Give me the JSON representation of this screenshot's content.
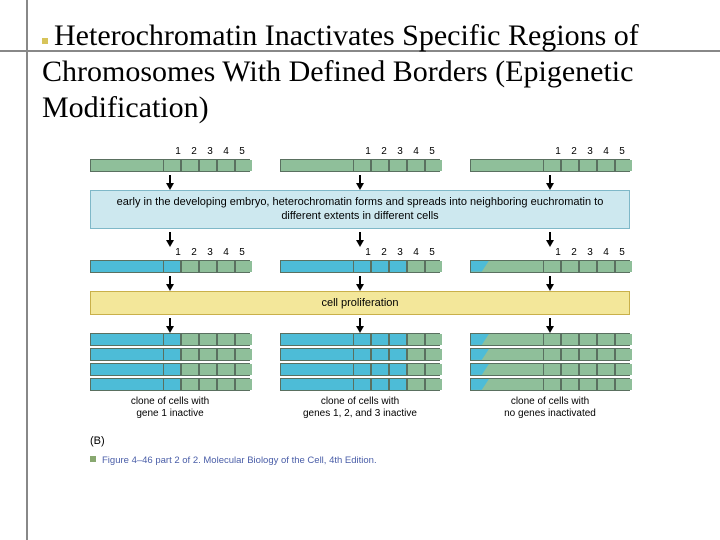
{
  "title": "Heterochromatin Inactivates Specific Regions of Chromosomes With Defined Borders (Epigenetic Modification)",
  "gene_numbers": [
    "1",
    "2",
    "3",
    "4",
    "5"
  ],
  "band1": "early in the developing embryo, heterochromatin forms and spreads into neighboring euchromatin to different extents in different cells",
  "band2": "cell proliferation",
  "colors": {
    "euchromatin": "#8fbf9a",
    "heterochromatin": "#4dbcd7",
    "chrom_border": "#5a7060",
    "band_blue_bg": "#cde8ef",
    "band_yellow_bg": "#f3e79a"
  },
  "columns": [
    {
      "closed_genes": 1,
      "caption_l1": "clone of cells with",
      "caption_l2": "gene 1 inactive"
    },
    {
      "closed_genes": 3,
      "caption_l1": "clone of cells with",
      "caption_l2": "genes 1, 2, and 3 inactive"
    },
    {
      "closed_genes": 0,
      "caption_l1": "clone of cells with",
      "caption_l2": "no genes inactivated"
    }
  ],
  "panel_label": "(B)",
  "figure_caption": "Figure 4–46 part 2 of 2. Molecular Biology of the Cell, 4th Edition."
}
